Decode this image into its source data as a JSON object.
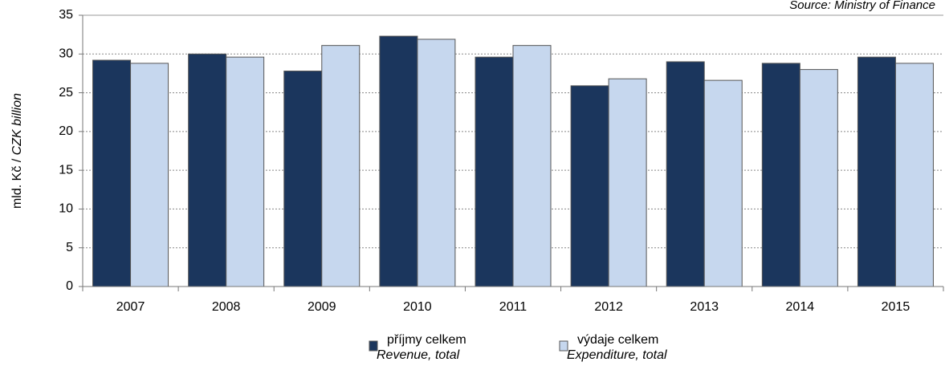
{
  "chart_data": {
    "type": "bar",
    "source": "Source: Ministry of Finance",
    "ylabel_parts": [
      "mld. Kč /",
      "CZK billion"
    ],
    "categories": [
      "2007",
      "2008",
      "2009",
      "2010",
      "2011",
      "2012",
      "2013",
      "2014",
      "2015"
    ],
    "series": [
      {
        "name": "příjmy celkem",
        "name_en": "Revenue, total",
        "color": "#1b365d",
        "values": [
          29.2,
          30.0,
          27.8,
          32.3,
          29.6,
          25.9,
          29.0,
          28.8,
          29.6
        ]
      },
      {
        "name": "výdaje celkem",
        "name_en": "Expenditure, total",
        "color": "#c6d7ee",
        "values": [
          28.8,
          29.6,
          31.1,
          31.9,
          31.1,
          26.8,
          26.6,
          28.0,
          28.8
        ]
      }
    ],
    "ylim": [
      0,
      35
    ],
    "yticks": [
      0,
      5,
      10,
      15,
      20,
      25,
      30,
      35
    ],
    "grid": true
  }
}
